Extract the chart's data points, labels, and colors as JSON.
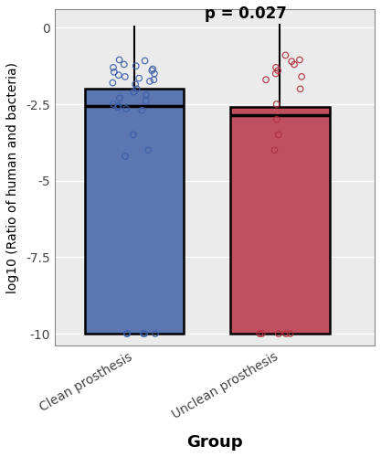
{
  "groups": [
    "Clean prosthesis",
    "Unclean prosthesis"
  ],
  "box_colors": [
    "#5b76b0",
    "#c05060"
  ],
  "dot_colors": [
    "#3d5fa8",
    "#b03040"
  ],
  "ylabel": "log10 (Ratio of human and bacteria)",
  "xlabel": "Group",
  "ylim": [
    -10.4,
    0.6
  ],
  "yticks": [
    -10.0,
    -7.5,
    -5.0,
    -2.5,
    0.0
  ],
  "p_text": "p = 0.027",
  "bg_color": "#ffffff",
  "panel_bg": "#ebebeb",
  "box1": {
    "q1": -10.0,
    "median": -2.55,
    "q3": -2.0,
    "whisker_high": 0.05,
    "whisker_low": -10.0
  },
  "box2": {
    "q1": -10.0,
    "median": -2.85,
    "q3": -2.6,
    "whisker_high": 0.1,
    "whisker_low": -10.0
  },
  "dots_clean": [
    -1.05,
    -1.08,
    -1.2,
    -1.25,
    -1.3,
    -1.35,
    -1.4,
    -1.45,
    -1.5,
    -1.55,
    -1.6,
    -1.65,
    -1.7,
    -1.75,
    -1.8,
    -1.85,
    -2.0,
    -2.1,
    -2.2,
    -2.3,
    -2.4,
    -2.5,
    -2.55,
    -2.6,
    -2.65,
    -2.7,
    -3.5,
    -4.0,
    -4.2,
    -10.0,
    -10.0,
    -10.0,
    -10.0,
    -10.0
  ],
  "dots_unclean": [
    -0.9,
    -1.05,
    -1.1,
    -1.2,
    -1.3,
    -1.4,
    -1.5,
    -1.6,
    -1.7,
    -2.0,
    -2.5,
    -3.0,
    -3.5,
    -4.0,
    -10.0,
    -10.0,
    -10.0,
    -10.0,
    -10.0
  ]
}
